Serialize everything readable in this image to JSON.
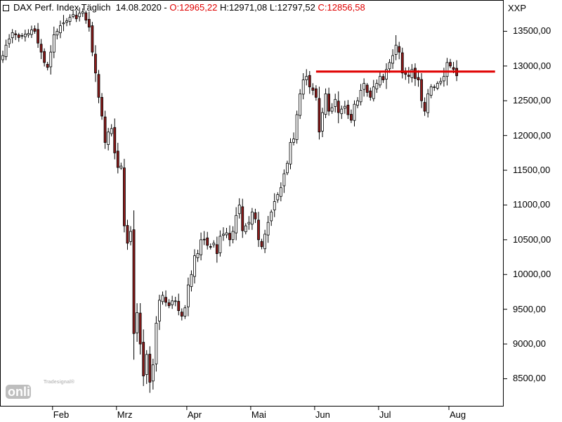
{
  "header": {
    "instrument": "DAX Perf. Index Täglich",
    "date": "14.08.2020",
    "open": "O:12965,22",
    "high": "H:12971,08",
    "low": "L:12797,52",
    "close": "C:12856,58"
  },
  "watermark": {
    "brand": "Tradesignal®",
    "logo": "online"
  },
  "colors": {
    "up": "#ffffff",
    "down": "#8b1a1a",
    "wick": "#000000",
    "resistance": "#e00000"
  },
  "chart_data": {
    "type": "candlestick",
    "title": "DAX Perf. Index Täglich",
    "unit_label": "XXP",
    "x_axis": {
      "ticks": [
        "Feb",
        "Mrz",
        "Apr",
        "Mai",
        "Jun",
        "Jul",
        "Aug"
      ],
      "tick_index": [
        16,
        36,
        58,
        78,
        98,
        118,
        140
      ]
    },
    "y_axis": {
      "ticks": [
        "8500,00",
        "9000,00",
        "9500,00",
        "10000,00",
        "10500,00",
        "11000,00",
        "11500,00",
        "12000,00",
        "12500,00",
        "13000,00",
        "13500,00"
      ],
      "tick_values": [
        8500,
        9000,
        9500,
        10000,
        10500,
        11000,
        11500,
        12000,
        12500,
        13000,
        13500
      ],
      "range": [
        8100,
        13950
      ],
      "position": "right"
    },
    "grid": false,
    "resistance_line": {
      "value": 12920,
      "from_index": 98,
      "to_index": 154
    },
    "closes": [
      13150,
      13300,
      13390,
      13480,
      13450,
      13410,
      13440,
      13460,
      13470,
      13520,
      13500,
      13330,
      13200,
      13050,
      12980,
      13200,
      13450,
      13500,
      13580,
      13620,
      13650,
      13700,
      13740,
      13680,
      13760,
      13780,
      13660,
      13560,
      13200,
      12900,
      12550,
      12280,
      11900,
      12050,
      12100,
      11750,
      11540,
      11560,
      10700,
      10450,
      10620,
      9150,
      9450,
      9000,
      8540,
      8850,
      8450,
      8700,
      9300,
      9630,
      9700,
      9600,
      9550,
      9620,
      9620,
      9480,
      9400,
      9520,
      9850,
      10000,
      10270,
      10300,
      10500,
      10500,
      10420,
      10400,
      10450,
      10300,
      10550,
      10580,
      10600,
      10500,
      10620,
      10850,
      11000,
      10630,
      10700,
      10750,
      10900,
      10800,
      10500,
      10400,
      10580,
      10750,
      10900,
      11050,
      11150,
      11250,
      11450,
      11600,
      11900,
      11950,
      12300,
      12600,
      12800,
      12850,
      12700,
      12650,
      12550,
      12050,
      12330,
      12600,
      12350,
      12400,
      12520,
      12330,
      12380,
      12420,
      12300,
      12220,
      12450,
      12500,
      12650,
      12750,
      12620,
      12550,
      12700,
      12750,
      12850,
      12800,
      12950,
      13050,
      13150,
      13300,
      13200,
      12900,
      12880,
      12850,
      12950,
      12820,
      12800,
      12500,
      12350,
      12600,
      12700,
      12700,
      12750,
      12780,
      12850,
      13050,
      13000,
      12950,
      12860
    ]
  }
}
